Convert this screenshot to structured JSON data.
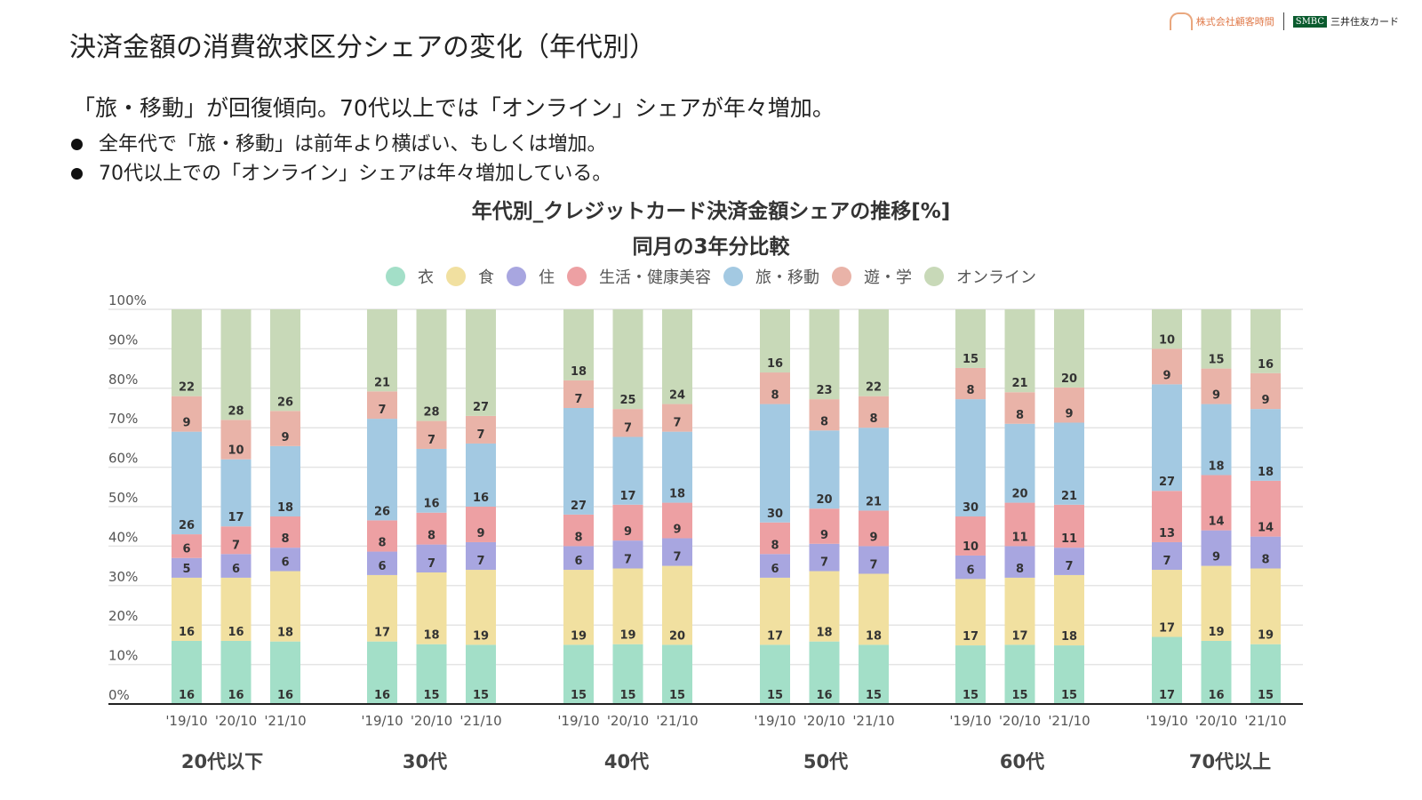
{
  "title": "決済金額の消費欲求区分シェアの変化（年代別）",
  "logos": {
    "company": "株式会社顧客時間",
    "smbc": "SMBC",
    "card": "三井住友カード"
  },
  "lead": "「旅・移動」が回復傾向。70代以上では「オンライン」シェアが年々増加。",
  "bullets": [
    "全年代で「旅・移動」は前年より横ばい、もしくは増加。",
    "70代以上での「オンライン」シェアは年々増加している。"
  ],
  "chart_data": {
    "type": "bar",
    "stacked": true,
    "title": "年代別_クレジットカード決済金額シェアの推移[%]",
    "subtitle": "同月の3年分比較",
    "legend_position": "top",
    "ylim": [
      0,
      100
    ],
    "yticks": [
      "0%",
      "10%",
      "20%",
      "30%",
      "40%",
      "50%",
      "60%",
      "70%",
      "80%",
      "90%",
      "100%"
    ],
    "grid": true,
    "groups": [
      "20代以下",
      "30代",
      "40代",
      "50代",
      "60代",
      "70代以上"
    ],
    "periods": [
      "'19/10",
      "'20/10",
      "'21/10"
    ],
    "series": [
      {
        "name": "衣",
        "color": "#a3dfc8",
        "values": [
          [
            16,
            16,
            16
          ],
          [
            16,
            15,
            15
          ],
          [
            15,
            15,
            15
          ],
          [
            15,
            16,
            15
          ],
          [
            15,
            15,
            15
          ],
          [
            17,
            16,
            15
          ]
        ]
      },
      {
        "name": "食",
        "color": "#f1e0a0",
        "values": [
          [
            16,
            16,
            18
          ],
          [
            17,
            18,
            19
          ],
          [
            19,
            19,
            20
          ],
          [
            17,
            18,
            18
          ],
          [
            17,
            17,
            18
          ],
          [
            17,
            19,
            19
          ]
        ]
      },
      {
        "name": "住",
        "color": "#a8a6e0",
        "values": [
          [
            5,
            6,
            6
          ],
          [
            6,
            7,
            7
          ],
          [
            6,
            7,
            7
          ],
          [
            6,
            7,
            7
          ],
          [
            6,
            8,
            7
          ],
          [
            7,
            9,
            8
          ]
        ]
      },
      {
        "name": "生活・健康美容",
        "color": "#eda0a3",
        "values": [
          [
            6,
            7,
            8
          ],
          [
            8,
            8,
            9
          ],
          [
            8,
            9,
            9
          ],
          [
            8,
            9,
            9
          ],
          [
            10,
            11,
            11
          ],
          [
            13,
            14,
            14
          ]
        ]
      },
      {
        "name": "旅・移動",
        "color": "#a3c9e2",
        "values": [
          [
            26,
            17,
            18
          ],
          [
            26,
            16,
            16
          ],
          [
            27,
            17,
            18
          ],
          [
            30,
            20,
            21
          ],
          [
            30,
            20,
            21
          ],
          [
            27,
            18,
            18
          ]
        ]
      },
      {
        "name": "遊・学",
        "color": "#e9b3a8",
        "values": [
          [
            9,
            10,
            9
          ],
          [
            7,
            7,
            7
          ],
          [
            7,
            7,
            7
          ],
          [
            8,
            8,
            8
          ],
          [
            8,
            8,
            9
          ],
          [
            9,
            9,
            9
          ]
        ]
      },
      {
        "name": "オンライン",
        "color": "#c8d9b8",
        "values": [
          [
            22,
            28,
            26
          ],
          [
            21,
            28,
            27
          ],
          [
            18,
            25,
            24
          ],
          [
            16,
            23,
            22
          ],
          [
            15,
            21,
            20
          ],
          [
            10,
            15,
            16
          ]
        ]
      }
    ]
  }
}
